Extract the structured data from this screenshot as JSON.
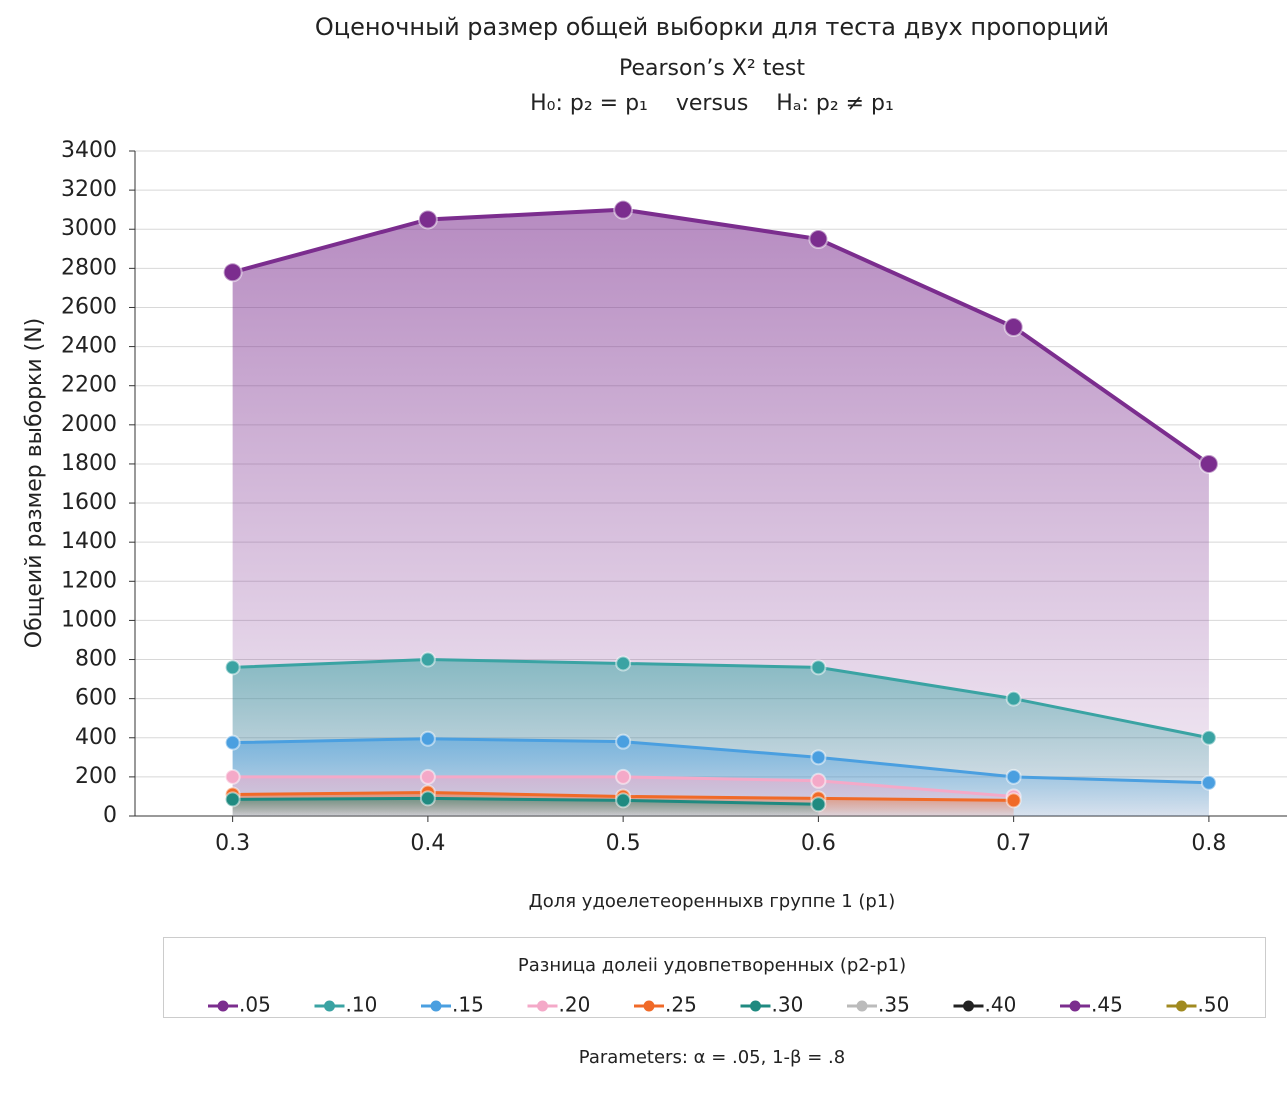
{
  "chart_data": {
    "type": "area",
    "title": "Оценочный размер общей выборки для теста двух пропорций",
    "subtitle": "Pearson’s X² test",
    "hypothesis": "H₀: p₂ = p₁    versus    Hₐ: p₂ ≠ p₁",
    "x_label": "Доля удоелетеоренныхв группе 1 (p1)",
    "y_label": "Общеий размер выборки (N)",
    "legend_title": "Разница долеіі удовпетворенных (p2-p1)",
    "note": "Parameters: α = .05, 1-β = .8",
    "x": [
      0.3,
      0.4,
      0.5,
      0.6,
      0.7,
      0.8
    ],
    "xlim": [
      0.25,
      0.84
    ],
    "xticks": [
      0.3,
      0.4,
      0.5,
      0.6,
      0.7,
      0.8
    ],
    "ylim": [
      0,
      3400
    ],
    "yticks": [
      0,
      200,
      400,
      600,
      800,
      1000,
      1200,
      1400,
      1600,
      1800,
      2000,
      2200,
      2400,
      2600,
      2800,
      3000,
      3200,
      3400
    ],
    "grid": true,
    "legend_position": "bottom",
    "series": [
      {
        "name": ".05",
        "color": "#7b2d8e",
        "values": [
          2780,
          3050,
          3100,
          2950,
          2500,
          1800
        ]
      },
      {
        "name": ".10",
        "color": "#3aa3a3",
        "values": [
          760,
          800,
          780,
          760,
          600,
          400
        ]
      },
      {
        "name": ".15",
        "color": "#4a9fe0",
        "values": [
          375,
          395,
          380,
          300,
          200,
          170
        ]
      },
      {
        "name": ".20",
        "color": "#f4a9c8",
        "values": [
          200,
          200,
          200,
          180,
          100,
          null
        ]
      },
      {
        "name": ".25",
        "color": "#f06a28",
        "values": [
          110,
          120,
          100,
          90,
          80,
          null
        ]
      },
      {
        "name": ".30",
        "color": "#1f8a80",
        "values": [
          85,
          90,
          80,
          60,
          null,
          null
        ]
      },
      {
        "name": ".35",
        "color": "#bbbbbb",
        "values": [
          null,
          null,
          null,
          null,
          null,
          null
        ]
      },
      {
        "name": ".40",
        "color": "#222222",
        "values": [
          null,
          null,
          null,
          null,
          null,
          null
        ]
      },
      {
        "name": ".45",
        "color": "#7b2d8e",
        "values": [
          null,
          null,
          null,
          null,
          null,
          null
        ]
      },
      {
        "name": ".50",
        "color": "#a08a20",
        "values": [
          null,
          null,
          null,
          null,
          null,
          null
        ]
      }
    ]
  }
}
